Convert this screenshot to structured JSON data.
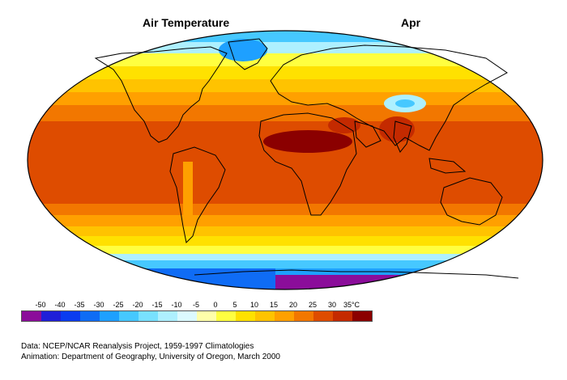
{
  "title": "Air Temperature",
  "month": "Apr",
  "legend": {
    "ticks": [
      "-50",
      "-40",
      "-35",
      "-30",
      "-25",
      "-20",
      "-15",
      "-10",
      "-5",
      "0",
      "5",
      "10",
      "15",
      "20",
      "25",
      "30",
      "35°C"
    ],
    "colors": [
      "#8b0d9a",
      "#1f1fd8",
      "#0a3cf0",
      "#0f6cf5",
      "#1ea0ff",
      "#46c8ff",
      "#78e1ff",
      "#aef0ff",
      "#dcfaff",
      "#ffffaa",
      "#ffff40",
      "#ffe100",
      "#ffc300",
      "#ffa000",
      "#f27700",
      "#de4c00",
      "#c42a00",
      "#8b0000"
    ]
  },
  "credits": {
    "data_line": "Data:  NCEP/NCAR Reanalysis Project, 1959-1997 Climatologies",
    "animation_line": "Animation:  Department of Geography, University of Oregon, March 2000"
  }
}
